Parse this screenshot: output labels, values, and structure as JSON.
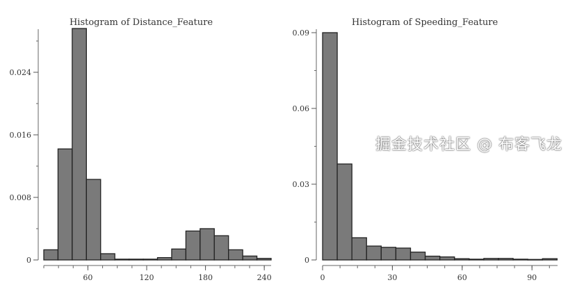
{
  "chart_data": [
    {
      "type": "bar",
      "title": "Histogram of Distance_Feature",
      "xlabel": "",
      "ylabel": "",
      "bin_start": 15,
      "bin_width": 14.5,
      "values": [
        0.0013,
        0.0142,
        0.0296,
        0.0103,
        0.0008,
        0.0001,
        0.0001,
        0.0001,
        0.0003,
        0.0014,
        0.0037,
        0.004,
        0.0031,
        0.0013,
        0.0005,
        0.0002
      ],
      "xlim": [
        15,
        247
      ],
      "ylim": [
        0,
        0.03
      ],
      "xticks": [
        60,
        120,
        180,
        240
      ],
      "xtick_labels": [
        "60",
        "120",
        "180",
        "240"
      ],
      "yticks": [
        0,
        0.008,
        0.016,
        0.024
      ],
      "ytick_labels": [
        "0",
        "0.008",
        "0.016",
        "0.024"
      ],
      "bar_color": "#7a7a7a",
      "grid": false
    },
    {
      "type": "bar",
      "title": "Histogram of Speeding_Feature",
      "xlabel": "",
      "ylabel": "",
      "bin_start": 0,
      "bin_width": 6.3,
      "values": [
        0.09,
        0.038,
        0.0088,
        0.0055,
        0.005,
        0.0047,
        0.0031,
        0.0015,
        0.0012,
        0.0005,
        0.0003,
        0.0006,
        0.0006,
        0.0003,
        0.0002,
        0.0005
      ],
      "xlim": [
        0,
        101
      ],
      "ylim": [
        0,
        0.09
      ],
      "xticks": [
        0,
        30,
        60,
        90
      ],
      "xtick_labels": [
        "0",
        "30",
        "60",
        "90"
      ],
      "yticks": [
        0,
        0.03,
        0.06,
        0.09
      ],
      "ytick_labels": [
        "0",
        "0.03",
        "0.06",
        "0.09"
      ],
      "bar_color": "#7a7a7a",
      "grid": false
    }
  ],
  "watermark": "掘金技术社区 @ 布客飞龙"
}
